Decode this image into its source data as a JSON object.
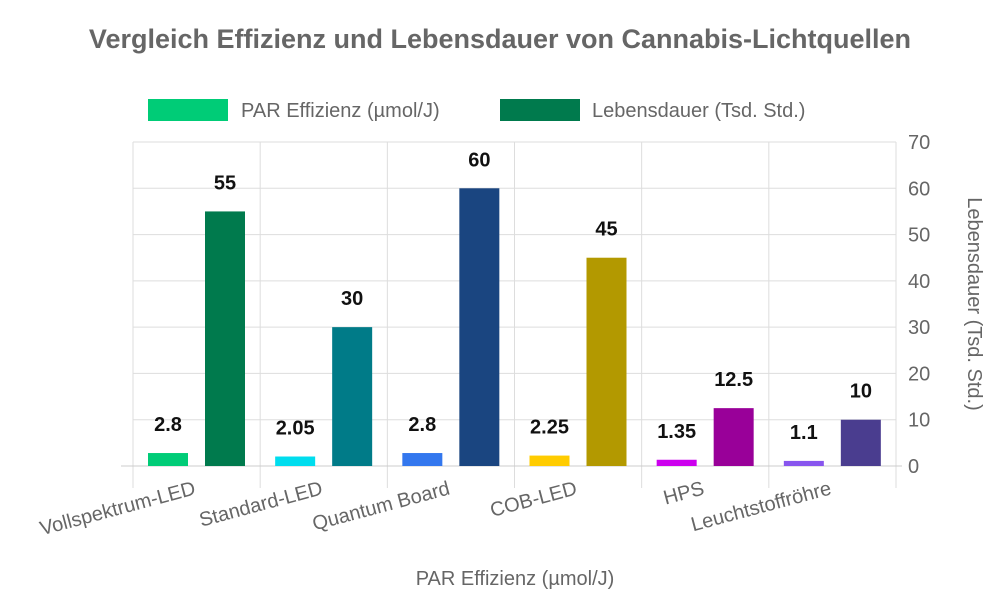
{
  "chart_data": {
    "type": "bar",
    "title": "Vergleich Effizienz und Lebensdauer von Cannabis-Lichtquellen",
    "xlabel": "PAR Effizienz (µmol/J)",
    "y2label": "Lebensdauer (Tsd. Std.)",
    "categories": [
      "Vollspektrum-LED",
      "Standard-LED",
      "Quantum Board",
      "COB-LED",
      "HPS",
      "Leuchtstoffröhre"
    ],
    "series": [
      {
        "name": "PAR Effizienz (µmol/J)",
        "values": [
          2.8,
          2.05,
          2.8,
          2.25,
          1.35,
          1.1
        ],
        "value_labels": [
          "2.8",
          "2.05",
          "2.8",
          "2.25",
          "1.35",
          "1.1"
        ],
        "legend_color": "#00cc77",
        "colors": [
          "#00cc77",
          "#00ddee",
          "#3377ee",
          "#ffcc00",
          "#cc00ee",
          "#8855ee"
        ]
      },
      {
        "name": "Lebensdauer (Tsd. Std.)",
        "values": [
          55,
          30,
          60,
          45,
          12.5,
          10
        ],
        "value_labels": [
          "55",
          "30",
          "60",
          "45",
          "12.5",
          "10"
        ],
        "legend_color": "#007a4d",
        "colors": [
          "#007a4d",
          "#007b88",
          "#1a4580",
          "#b39900",
          "#990099",
          "#4a3d8f"
        ]
      }
    ],
    "y2lim": [
      0,
      70
    ],
    "y2ticks": [
      "0",
      "10",
      "20",
      "30",
      "40",
      "50",
      "60",
      "70"
    ],
    "grid": true,
    "legend_position": "top"
  }
}
